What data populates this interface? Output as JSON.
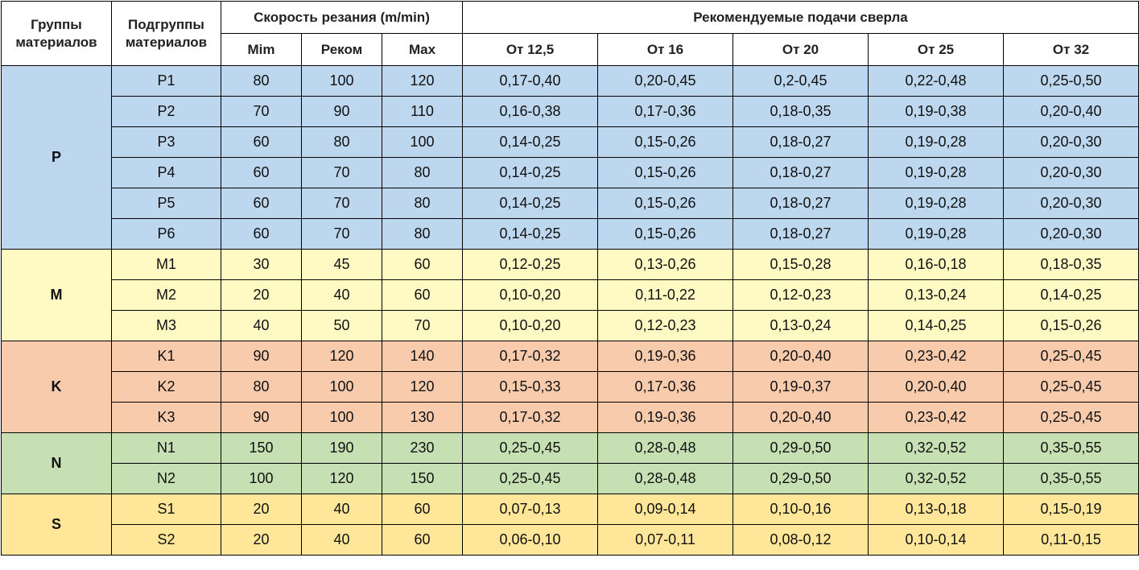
{
  "header": {
    "group": "Группы материалов",
    "subgroup": "Подгруппы материалов",
    "speed": "Скорость резания (m/min)",
    "speed_cols": [
      "Mim",
      "Реком",
      "Max"
    ],
    "feed": "Рекомендуемые подачи сверла",
    "feed_cols": [
      "От 12,5",
      "От 16",
      "От 20",
      "От 25",
      "От 32"
    ]
  },
  "groups": [
    {
      "name": "P",
      "color": "#bdd7ee",
      "rows": [
        {
          "sub": "P1",
          "speed": [
            "80",
            "100",
            "120"
          ],
          "feeds": [
            "0,17-0,40",
            "0,20-0,45",
            "0,2-0,45",
            "0,22-0,48",
            "0,25-0,50"
          ]
        },
        {
          "sub": "P2",
          "speed": [
            "70",
            "90",
            "110"
          ],
          "feeds": [
            "0,16-0,38",
            "0,17-0,36",
            "0,18-0,35",
            "0,19-0,38",
            "0,20-0,40"
          ]
        },
        {
          "sub": "P3",
          "speed": [
            "60",
            "80",
            "100"
          ],
          "feeds": [
            "0,14-0,25",
            "0,15-0,26",
            "0,18-0,27",
            "0,19-0,28",
            "0,20-0,30"
          ]
        },
        {
          "sub": "P4",
          "speed": [
            "60",
            "70",
            "80"
          ],
          "feeds": [
            "0,14-0,25",
            "0,15-0,26",
            "0,18-0,27",
            "0,19-0,28",
            "0,20-0,30"
          ]
        },
        {
          "sub": "P5",
          "speed": [
            "60",
            "70",
            "80"
          ],
          "feeds": [
            "0,14-0,25",
            "0,15-0,26",
            "0,18-0,27",
            "0,19-0,28",
            "0,20-0,30"
          ]
        },
        {
          "sub": "P6",
          "speed": [
            "60",
            "70",
            "80"
          ],
          "feeds": [
            "0,14-0,25",
            "0,15-0,26",
            "0,18-0,27",
            "0,19-0,28",
            "0,20-0,30"
          ]
        }
      ]
    },
    {
      "name": "M",
      "color": "#fff9c4",
      "rows": [
        {
          "sub": "M1",
          "speed": [
            "30",
            "45",
            "60"
          ],
          "feeds": [
            "0,12-0,25",
            "0,13-0,26",
            "0,15-0,28",
            "0,16-0,18",
            "0,18-0,35"
          ]
        },
        {
          "sub": "M2",
          "speed": [
            "20",
            "40",
            "60"
          ],
          "feeds": [
            "0,10-0,20",
            "0,11-0,22",
            "0,12-0,23",
            "0,13-0,24",
            "0,14-0,25"
          ]
        },
        {
          "sub": "M3",
          "speed": [
            "40",
            "50",
            "70"
          ],
          "feeds": [
            "0,10-0,20",
            "0,12-0,23",
            "0,13-0,24",
            "0,14-0,25",
            "0,15-0,26"
          ]
        }
      ]
    },
    {
      "name": "K",
      "color": "#f8cbad",
      "rows": [
        {
          "sub": "K1",
          "speed": [
            "90",
            "120",
            "140"
          ],
          "feeds": [
            "0,17-0,32",
            "0,19-0,36",
            "0,20-0,40",
            "0,23-0,42",
            "0,25-0,45"
          ]
        },
        {
          "sub": "K2",
          "speed": [
            "80",
            "100",
            "120"
          ],
          "feeds": [
            "0,15-0,33",
            "0,17-0,36",
            "0,19-0,37",
            "0,20-0,40",
            "0,25-0,45"
          ]
        },
        {
          "sub": "K3",
          "speed": [
            "90",
            "100",
            "130"
          ],
          "feeds": [
            "0,17-0,32",
            "0,19-0,36",
            "0,20-0,40",
            "0,23-0,42",
            "0,25-0,45"
          ]
        }
      ]
    },
    {
      "name": "N",
      "color": "#c6e0b4",
      "rows": [
        {
          "sub": "N1",
          "speed": [
            "150",
            "190",
            "230"
          ],
          "feeds": [
            "0,25-0,45",
            "0,28-0,48",
            "0,29-0,50",
            "0,32-0,52",
            "0,35-0,55"
          ]
        },
        {
          "sub": "N2",
          "speed": [
            "100",
            "120",
            "150"
          ],
          "feeds": [
            "0,25-0,45",
            "0,28-0,48",
            "0,29-0,50",
            "0,32-0,52",
            "0,35-0,55"
          ]
        }
      ]
    },
    {
      "name": "S",
      "color": "#ffe699",
      "rows": [
        {
          "sub": "S1",
          "speed": [
            "20",
            "40",
            "60"
          ],
          "feeds": [
            "0,07-0,13",
            "0,09-0,14",
            "0,10-0,16",
            "0,13-0,18",
            "0,15-0,19"
          ]
        },
        {
          "sub": "S2",
          "speed": [
            "20",
            "40",
            "60"
          ],
          "feeds": [
            "0,06-0,10",
            "0,07-0,11",
            "0,08-0,12",
            "0,10-0,14",
            "0,11-0,15"
          ]
        }
      ]
    }
  ]
}
